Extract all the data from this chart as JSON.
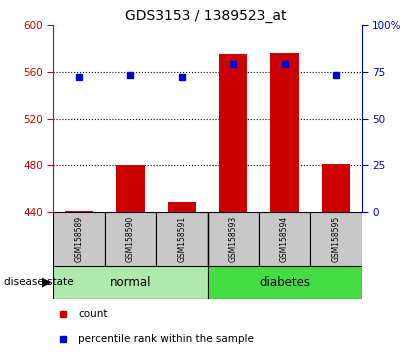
{
  "title": "GDS3153 / 1389523_at",
  "samples": [
    "GSM158589",
    "GSM158590",
    "GSM158591",
    "GSM158593",
    "GSM158594",
    "GSM158595"
  ],
  "groups": [
    "normal",
    "normal",
    "normal",
    "diabetes",
    "diabetes",
    "diabetes"
  ],
  "bar_values": [
    441,
    480,
    449,
    575,
    576,
    481
  ],
  "percentile_values": [
    72,
    73,
    72,
    79,
    79,
    73
  ],
  "bar_bottom": 440,
  "ylim_left": [
    440,
    600
  ],
  "ylim_right": [
    0,
    100
  ],
  "yticks_left": [
    440,
    480,
    520,
    560,
    600
  ],
  "yticks_right": [
    0,
    25,
    50,
    75,
    100
  ],
  "bar_color": "#cc0000",
  "percentile_color": "#0000cc",
  "normal_color": "#aeeaae",
  "diabetes_color": "#44dd44",
  "grid_color": "black",
  "left_tick_color": "#cc0000",
  "right_tick_color": "#0000cc",
  "title_fontsize": 10,
  "bar_width": 0.55,
  "legend_items": [
    "count",
    "percentile rank within the sample"
  ],
  "disease_state_label": "disease state",
  "normal_label": "normal",
  "diabetes_label": "diabetes",
  "sample_box_color": "#c8c8c8",
  "gridline_levels": [
    480,
    520,
    560
  ]
}
